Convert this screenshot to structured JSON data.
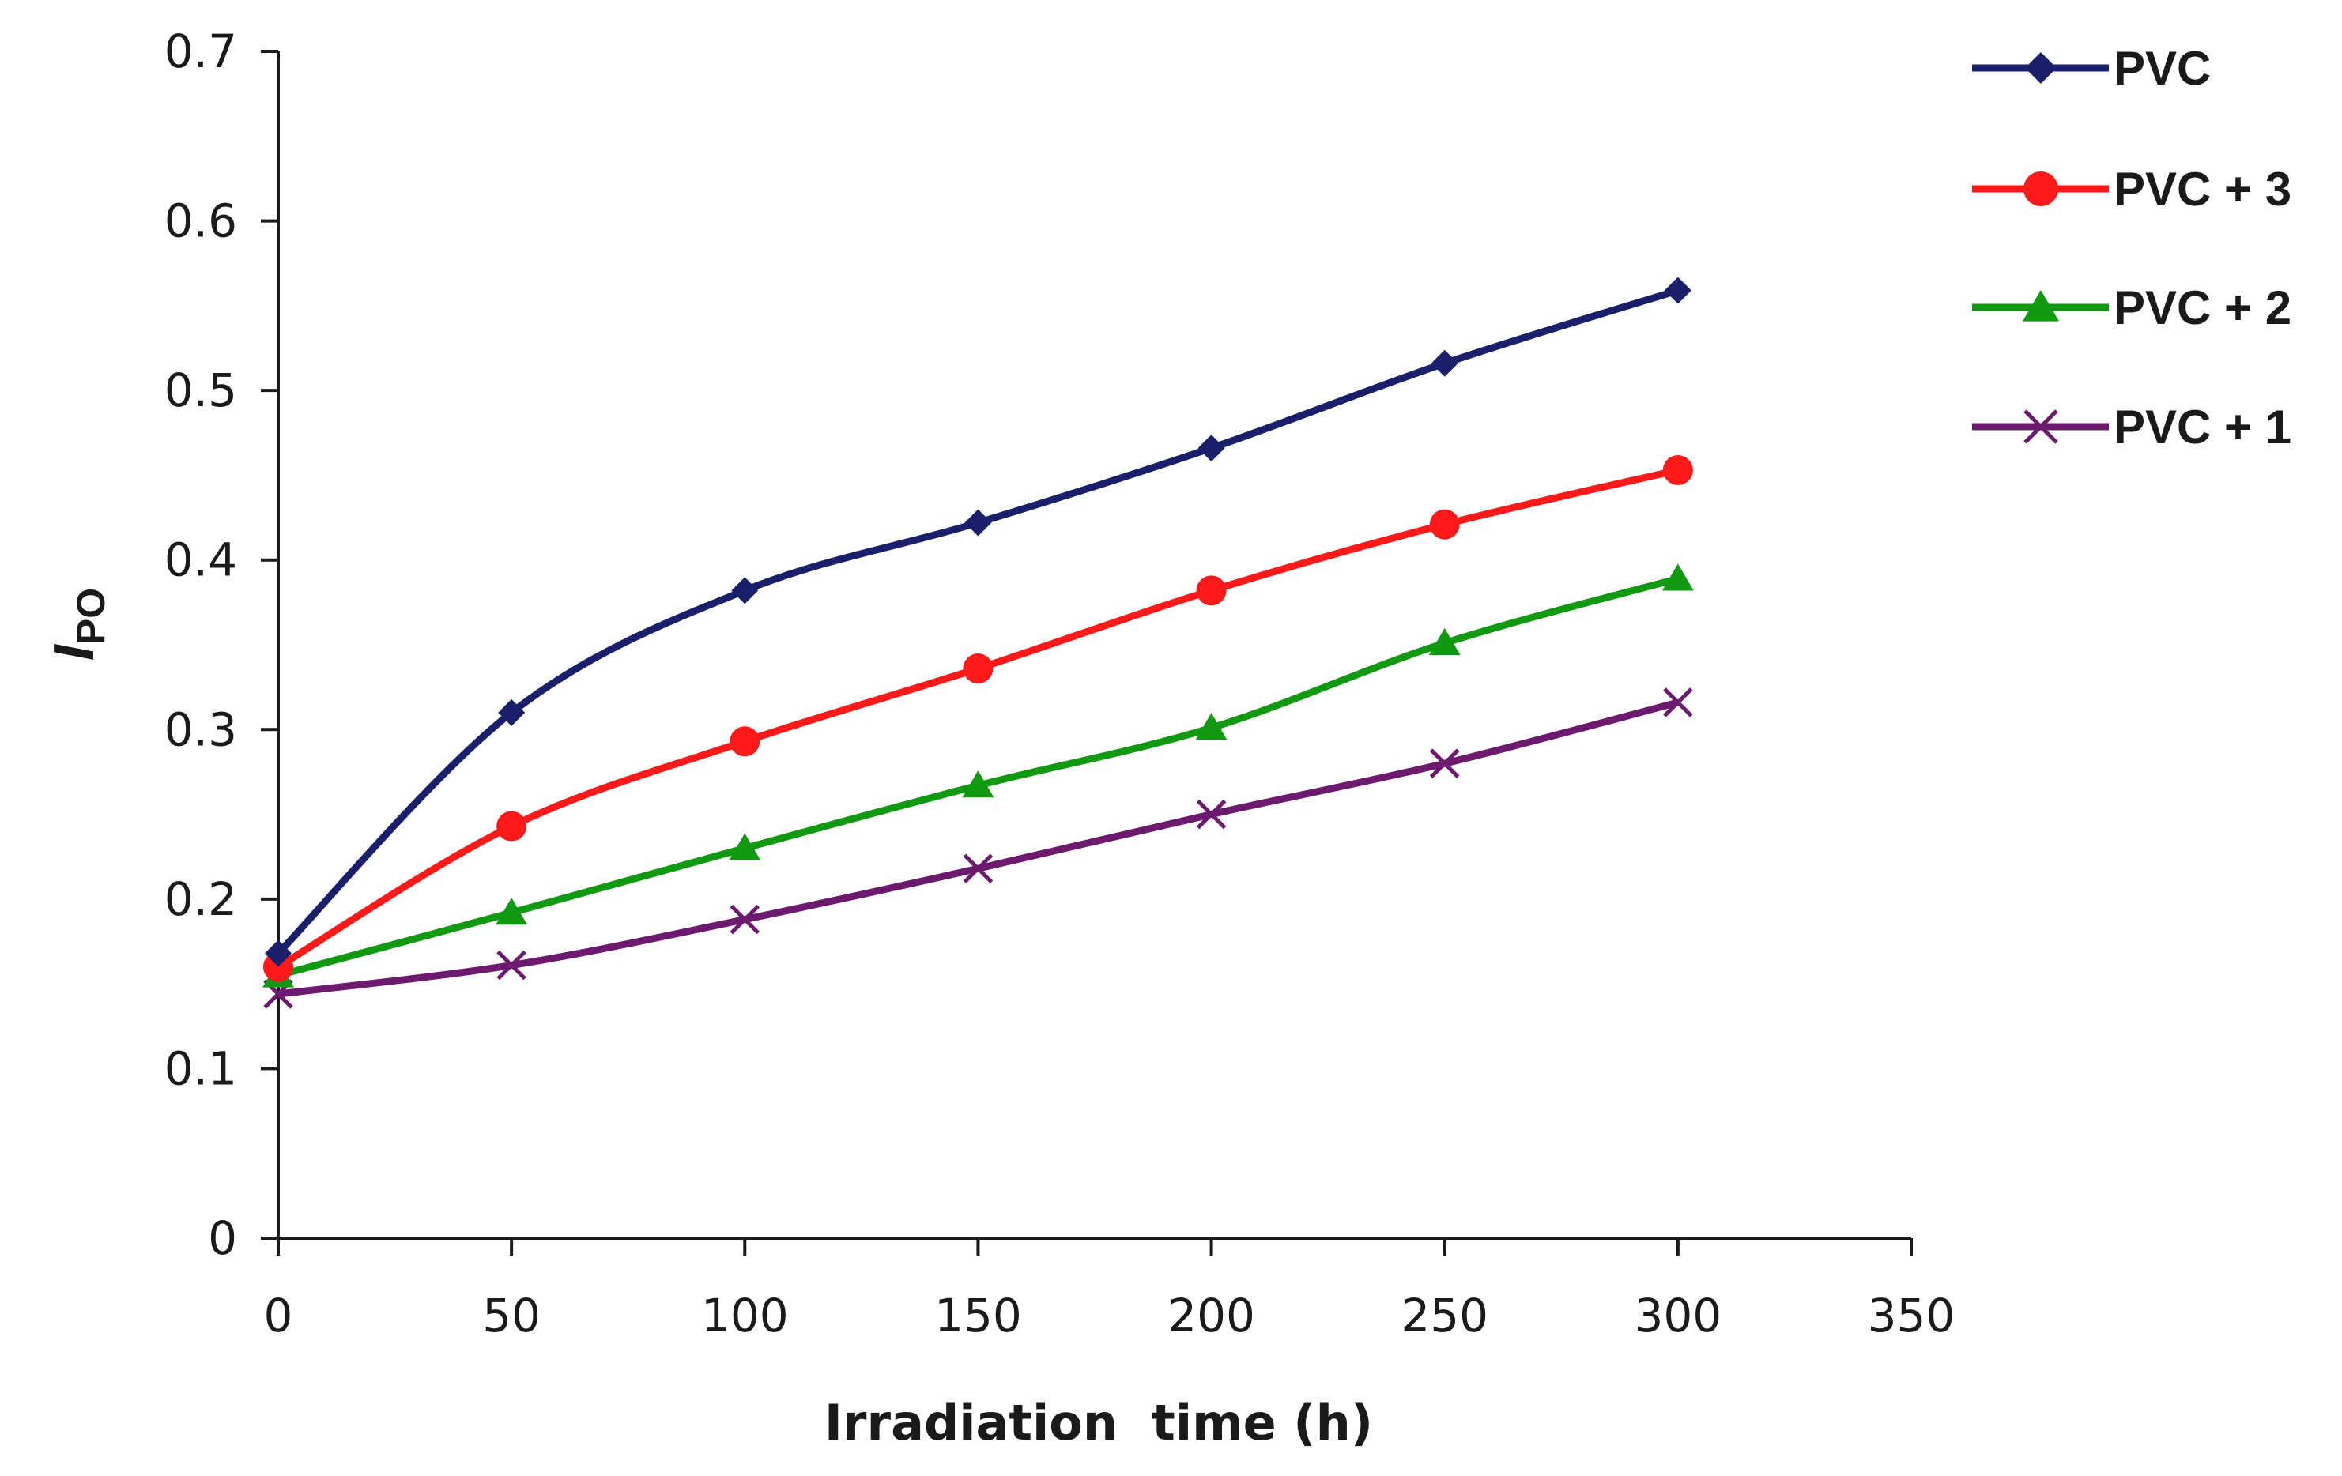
{
  "chart_data": {
    "type": "line",
    "title": "",
    "xlabel": "Irradiation  time (h)",
    "ylabel": "I",
    "ylabel_subscript": "PO",
    "x": [
      0,
      50,
      100,
      150,
      200,
      250,
      300
    ],
    "xlim": [
      0,
      350
    ],
    "xticks": [
      "0",
      "50",
      "100",
      "150",
      "200",
      "250",
      "300",
      "350"
    ],
    "ylim": [
      0,
      0.7
    ],
    "yticks": [
      "0",
      "0.1",
      "0.2",
      "0.3",
      "0.4",
      "0.5",
      "0.6",
      "0.7"
    ],
    "grid": false,
    "legend_position": "top-right (outside plot)",
    "series": [
      {
        "name": "PVC",
        "color": "#1a1f6b",
        "marker": "diamond",
        "values": [
          0.168,
          0.31,
          0.382,
          0.422,
          0.466,
          0.516,
          0.559
        ]
      },
      {
        "name": "PVC + 3",
        "color": "#ff1a1a",
        "marker": "circle",
        "values": [
          0.16,
          0.243,
          0.293,
          0.336,
          0.382,
          0.421,
          0.453
        ]
      },
      {
        "name": "PVC + 2",
        "color": "#129912",
        "marker": "triangle",
        "values": [
          0.155,
          0.192,
          0.23,
          0.267,
          0.301,
          0.351,
          0.389
        ]
      },
      {
        "name": "PVC + 1",
        "color": "#6b1a6e",
        "marker": "x",
        "values": [
          0.144,
          0.161,
          0.188,
          0.218,
          0.25,
          0.28,
          0.316
        ]
      }
    ]
  }
}
